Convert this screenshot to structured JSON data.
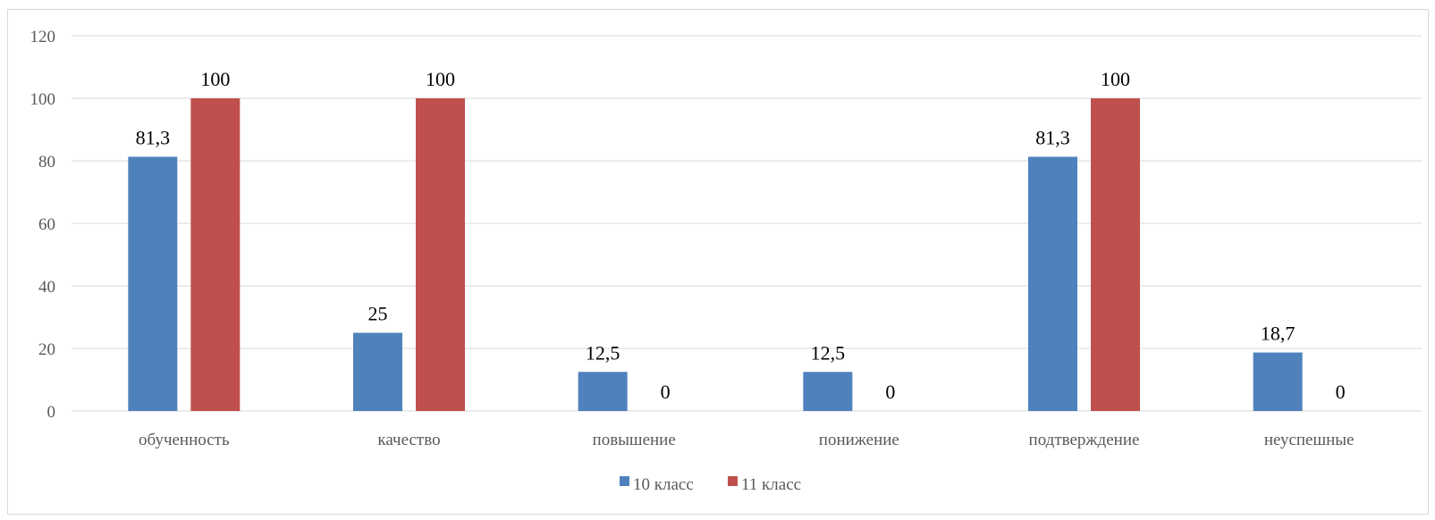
{
  "chart_data": {
    "type": "bar",
    "categories": [
      "обученность",
      "качество",
      "повышение",
      "понижение",
      "подтверждение",
      "неуспешные"
    ],
    "series": [
      {
        "name": "10 класс",
        "color": "#4f81bd",
        "values": [
          81.3,
          25,
          12.5,
          12.5,
          81.3,
          18.7
        ],
        "labels": [
          "81,3",
          "25",
          "12,5",
          "12,5",
          "81,3",
          "18,7"
        ]
      },
      {
        "name": "11 класс",
        "color": "#c0504d",
        "values": [
          100,
          100,
          0,
          0,
          100,
          0
        ],
        "labels": [
          "100",
          "100",
          "0",
          "0",
          "100",
          "0"
        ]
      }
    ],
    "yticks": [
      "0",
      "20",
      "40",
      "60",
      "80",
      "100",
      "120"
    ],
    "ylim": [
      0,
      120
    ],
    "grid": true,
    "legend_position": "bottom",
    "gridline_color": "#d9d9d9"
  }
}
